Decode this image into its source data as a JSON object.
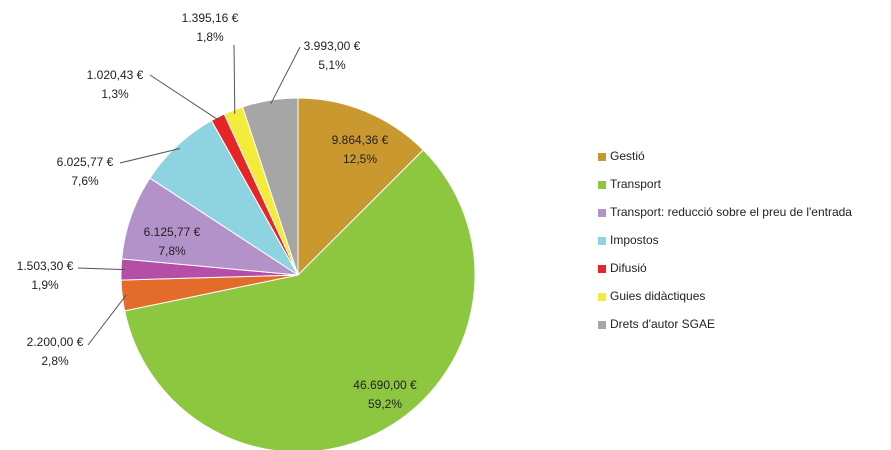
{
  "chart_data": {
    "type": "pie",
    "categories": [
      "Gestió",
      "Transport",
      null,
      null,
      "Transport: reducció sobre el preu de l'entrada",
      "Impostos",
      "Difusió",
      "Guies didàctiques",
      "Drets d'autor SGAE"
    ],
    "values": [
      9864.36,
      46690.0,
      2200.0,
      1503.3,
      6125.77,
      6025.77,
      1020.43,
      1395.16,
      3993.0
    ],
    "value_labels": [
      "9.864,36 €",
      "46.690,00 €",
      "2.200,00 €",
      "1.503,30 €",
      "6.125,77 €",
      "6.025,77 €",
      "1.020,43 €",
      "1.395,16 €",
      "3.993,00 €"
    ],
    "percentages": [
      12.5,
      59.2,
      2.8,
      1.9,
      7.8,
      7.6,
      1.3,
      1.8,
      5.1
    ],
    "percentage_labels": [
      "12,5%",
      "59,2%",
      "2,8%",
      "1,9%",
      "7,8%",
      "7,6%",
      "1,3%",
      "1,8%",
      "5,1%"
    ],
    "colors": [
      "#c9992f",
      "#8dc63f",
      "#e46c2a",
      "#b44ea6",
      "#b392c9",
      "#8dd3e0",
      "#e52526",
      "#f4ec3a",
      "#a6a6a6"
    ],
    "legend": "right"
  }
}
